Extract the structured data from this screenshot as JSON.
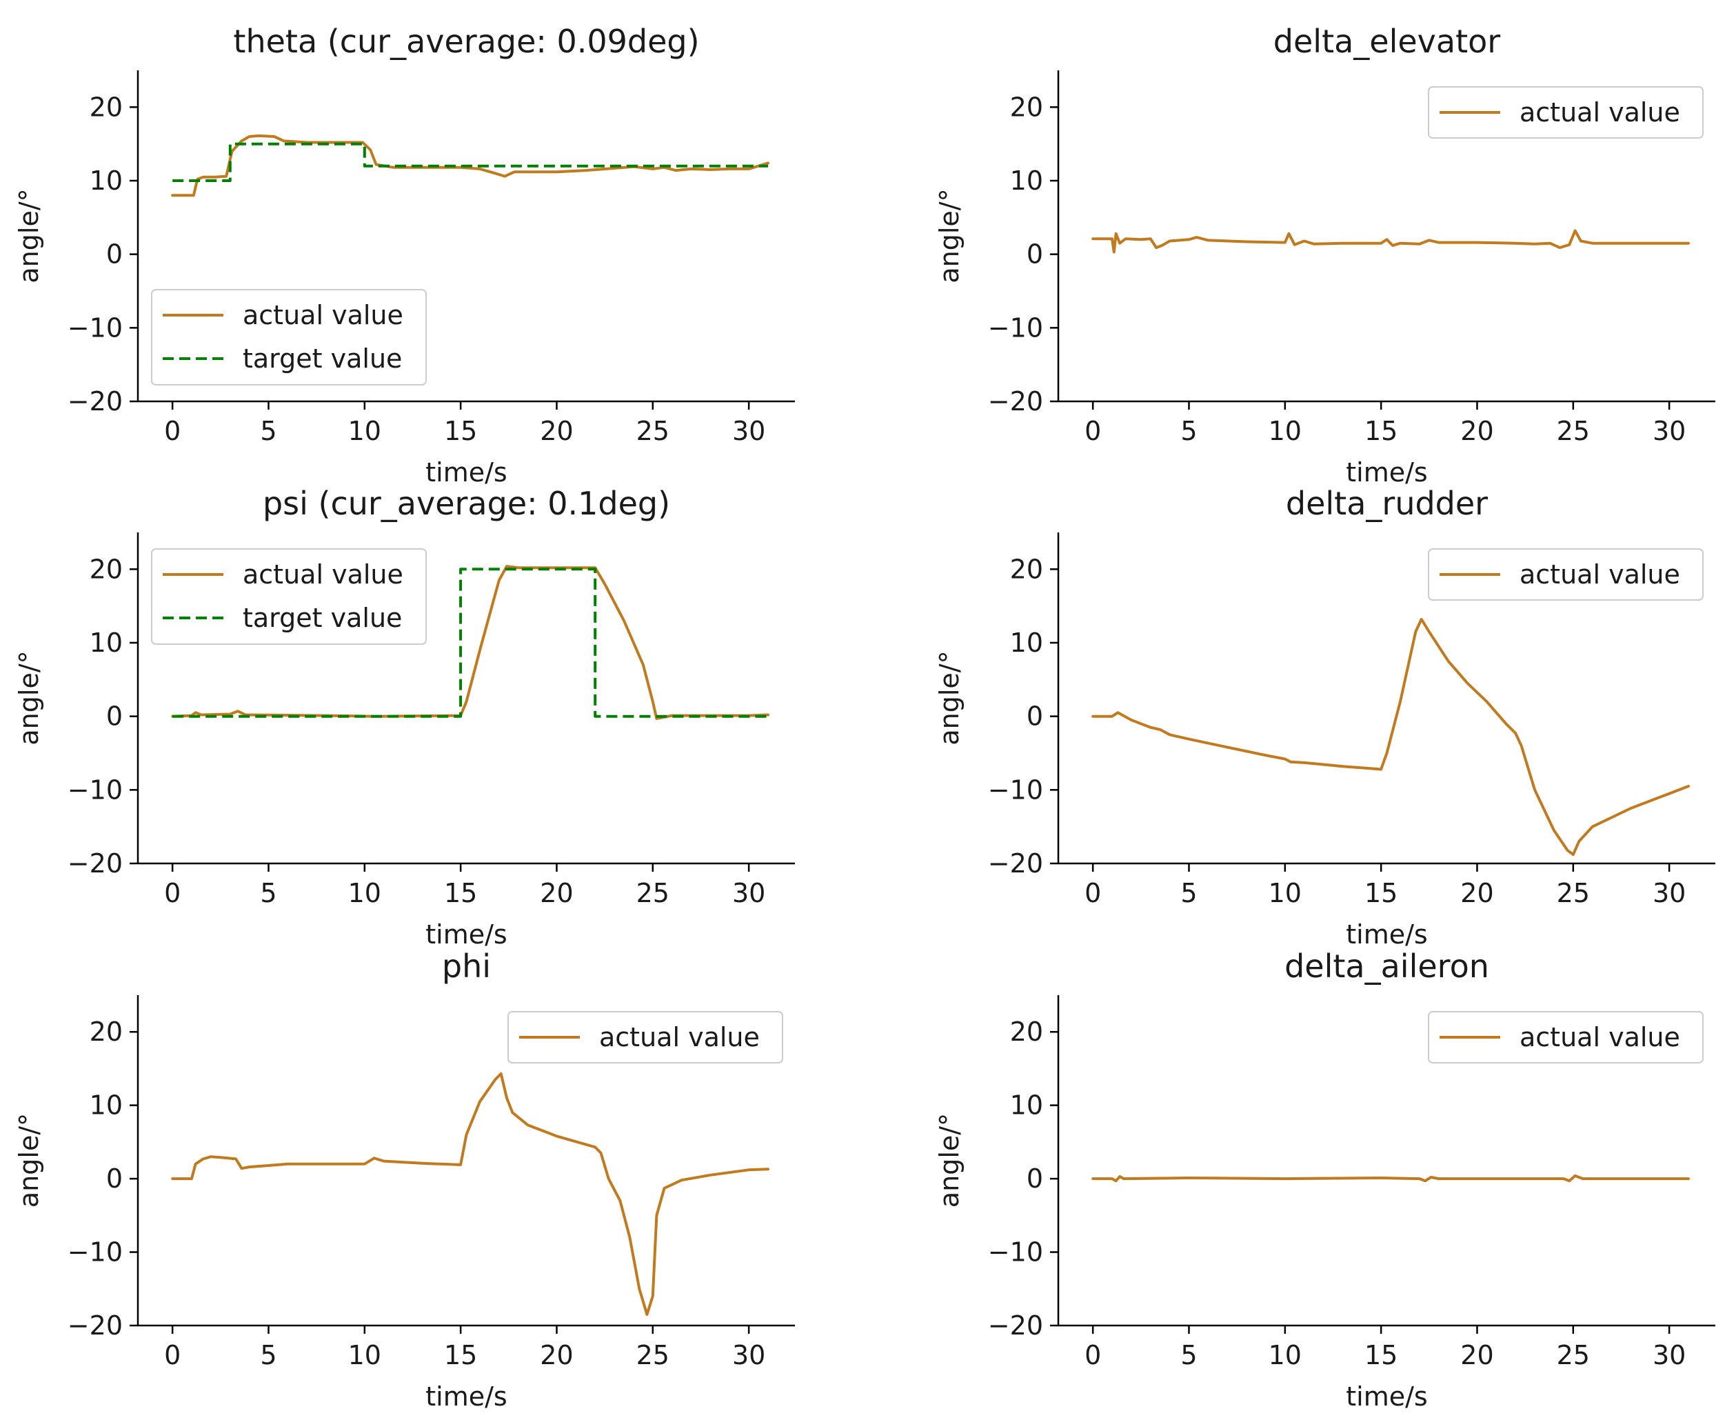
{
  "colors": {
    "actual": "#c27a1e",
    "target": "#008000",
    "axis": "#000000",
    "legend_border": "#cccccc"
  },
  "chart_data": [
    {
      "type": "line",
      "title": "theta (cur_average: 0.09deg)",
      "xlabel": "time/s",
      "ylabel": "angle/°",
      "xlim": [
        -1.8,
        32.4
      ],
      "ylim": [
        -20,
        25
      ],
      "xticks": [
        0,
        5,
        10,
        15,
        20,
        25,
        30
      ],
      "yticks": [
        -20,
        -10,
        0,
        10,
        20
      ],
      "tick_labels_x": [
        "0",
        "5",
        "10",
        "15",
        "20",
        "25",
        "30"
      ],
      "tick_labels_y": [
        "−20",
        "−10",
        "0",
        "10",
        "20"
      ],
      "legend": {
        "placement": "lower-left"
      },
      "series": [
        {
          "name": "actual value",
          "style": "solid",
          "color": "#c27a1e",
          "points": [
            [
              0,
              8
            ],
            [
              1.1,
              8
            ],
            [
              1.3,
              10.2
            ],
            [
              1.6,
              10.5
            ],
            [
              2.2,
              10.5
            ],
            [
              2.8,
              10.6
            ],
            [
              3.1,
              14
            ],
            [
              3.6,
              15.4
            ],
            [
              4,
              16
            ],
            [
              4.5,
              16.1
            ],
            [
              5.3,
              16
            ],
            [
              5.8,
              15.4
            ],
            [
              7,
              15.2
            ],
            [
              8.5,
              15.2
            ],
            [
              9.9,
              15.2
            ],
            [
              10.3,
              14.2
            ],
            [
              10.6,
              12.2
            ],
            [
              11.5,
              11.8
            ],
            [
              13,
              11.8
            ],
            [
              15,
              11.8
            ],
            [
              16,
              11.6
            ],
            [
              16.8,
              11
            ],
            [
              17.3,
              10.6
            ],
            [
              17.8,
              11.2
            ],
            [
              18.8,
              11.2
            ],
            [
              20,
              11.2
            ],
            [
              21.5,
              11.4
            ],
            [
              23,
              11.7
            ],
            [
              24,
              11.9
            ],
            [
              25,
              11.6
            ],
            [
              25.6,
              11.8
            ],
            [
              26.2,
              11.4
            ],
            [
              27,
              11.6
            ],
            [
              28,
              11.5
            ],
            [
              29,
              11.6
            ],
            [
              30,
              11.6
            ],
            [
              31,
              12.4
            ]
          ]
        },
        {
          "name": "target value",
          "style": "dashed",
          "color": "#008000",
          "points": [
            [
              0,
              10
            ],
            [
              3,
              10
            ],
            [
              3,
              15
            ],
            [
              10,
              15
            ],
            [
              10,
              12
            ],
            [
              31,
              12
            ]
          ]
        }
      ]
    },
    {
      "type": "line",
      "title": "delta_elevator",
      "xlabel": "time/s",
      "ylabel": "angle/°",
      "xlim": [
        -1.8,
        32.4
      ],
      "ylim": [
        -20,
        25
      ],
      "xticks": [
        0,
        5,
        10,
        15,
        20,
        25,
        30
      ],
      "yticks": [
        -20,
        -10,
        0,
        10,
        20
      ],
      "tick_labels_x": [
        "0",
        "5",
        "10",
        "15",
        "20",
        "25",
        "30"
      ],
      "tick_labels_y": [
        "−20",
        "−10",
        "0",
        "10",
        "20"
      ],
      "legend": {
        "placement": "top-right"
      },
      "series": [
        {
          "name": "actual value",
          "style": "solid",
          "color": "#c27a1e",
          "points": [
            [
              0,
              2.1
            ],
            [
              1,
              2.1
            ],
            [
              1.1,
              0.3
            ],
            [
              1.2,
              2.8
            ],
            [
              1.4,
              1.5
            ],
            [
              1.7,
              2.1
            ],
            [
              2.5,
              2
            ],
            [
              3,
              2.1
            ],
            [
              3.3,
              0.9
            ],
            [
              3.6,
              1.2
            ],
            [
              4,
              1.8
            ],
            [
              5,
              2
            ],
            [
              5.4,
              2.3
            ],
            [
              6,
              1.9
            ],
            [
              8,
              1.7
            ],
            [
              10,
              1.6
            ],
            [
              10.2,
              2.8
            ],
            [
              10.5,
              1.3
            ],
            [
              11,
              1.8
            ],
            [
              11.5,
              1.4
            ],
            [
              13,
              1.5
            ],
            [
              15,
              1.5
            ],
            [
              15.3,
              2
            ],
            [
              15.6,
              1.2
            ],
            [
              16,
              1.5
            ],
            [
              17,
              1.4
            ],
            [
              17.5,
              1.9
            ],
            [
              18,
              1.6
            ],
            [
              20,
              1.6
            ],
            [
              22,
              1.5
            ],
            [
              23,
              1.4
            ],
            [
              23.8,
              1.5
            ],
            [
              24.3,
              0.9
            ],
            [
              24.8,
              1.3
            ],
            [
              25.1,
              3.2
            ],
            [
              25.4,
              1.8
            ],
            [
              26,
              1.5
            ],
            [
              28,
              1.5
            ],
            [
              30,
              1.5
            ],
            [
              31,
              1.5
            ]
          ]
        }
      ]
    },
    {
      "type": "line",
      "title": "psi (cur_average: 0.1deg)",
      "xlabel": "time/s",
      "ylabel": "angle/°",
      "xlim": [
        -1.8,
        32.4
      ],
      "ylim": [
        -20,
        25
      ],
      "xticks": [
        0,
        5,
        10,
        15,
        20,
        25,
        30
      ],
      "yticks": [
        -20,
        -10,
        0,
        10,
        20
      ],
      "tick_labels_x": [
        "0",
        "5",
        "10",
        "15",
        "20",
        "25",
        "30"
      ],
      "tick_labels_y": [
        "−20",
        "−10",
        "0",
        "10",
        "20"
      ],
      "legend": {
        "placement": "top-left"
      },
      "series": [
        {
          "name": "actual value",
          "style": "solid",
          "color": "#c27a1e",
          "points": [
            [
              0,
              0
            ],
            [
              1,
              0.1
            ],
            [
              1.2,
              0.5
            ],
            [
              1.5,
              0.2
            ],
            [
              3,
              0.3
            ],
            [
              3.4,
              0.7
            ],
            [
              3.8,
              0.2
            ],
            [
              8,
              0.1
            ],
            [
              10.5,
              0
            ],
            [
              15,
              0.1
            ],
            [
              15.3,
              2
            ],
            [
              16,
              9
            ],
            [
              17,
              18.5
            ],
            [
              17.4,
              20.4
            ],
            [
              18,
              20.2
            ],
            [
              20,
              20.2
            ],
            [
              22,
              20.2
            ],
            [
              22.5,
              18
            ],
            [
              23.5,
              13
            ],
            [
              24.5,
              7
            ],
            [
              25,
              2
            ],
            [
              25.2,
              -0.3
            ],
            [
              26,
              0.1
            ],
            [
              28,
              0.1
            ],
            [
              30,
              0.1
            ],
            [
              31,
              0.2
            ]
          ]
        },
        {
          "name": "target value",
          "style": "dashed",
          "color": "#008000",
          "points": [
            [
              0,
              0
            ],
            [
              15,
              0
            ],
            [
              15,
              20
            ],
            [
              22,
              20
            ],
            [
              22,
              0
            ],
            [
              31,
              0
            ]
          ]
        }
      ]
    },
    {
      "type": "line",
      "title": "delta_rudder",
      "xlabel": "time/s",
      "ylabel": "angle/°",
      "xlim": [
        -1.8,
        32.4
      ],
      "ylim": [
        -20,
        25
      ],
      "xticks": [
        0,
        5,
        10,
        15,
        20,
        25,
        30
      ],
      "yticks": [
        -20,
        -10,
        0,
        10,
        20
      ],
      "tick_labels_x": [
        "0",
        "5",
        "10",
        "15",
        "20",
        "25",
        "30"
      ],
      "tick_labels_y": [
        "−20",
        "−10",
        "0",
        "10",
        "20"
      ],
      "legend": {
        "placement": "top-right"
      },
      "series": [
        {
          "name": "actual value",
          "style": "solid",
          "color": "#c27a1e",
          "points": [
            [
              0,
              0
            ],
            [
              1,
              0
            ],
            [
              1.3,
              0.5
            ],
            [
              2,
              -0.5
            ],
            [
              3,
              -1.5
            ],
            [
              3.5,
              -1.8
            ],
            [
              4,
              -2.5
            ],
            [
              5,
              -3.1
            ],
            [
              7,
              -4.2
            ],
            [
              9,
              -5.3
            ],
            [
              10,
              -5.8
            ],
            [
              10.3,
              -6.2
            ],
            [
              11,
              -6.3
            ],
            [
              13,
              -6.8
            ],
            [
              14.5,
              -7.1
            ],
            [
              15,
              -7.2
            ],
            [
              15.3,
              -5
            ],
            [
              16,
              2
            ],
            [
              16.8,
              11.5
            ],
            [
              17.1,
              13.2
            ],
            [
              17.5,
              11.5
            ],
            [
              18.5,
              7.5
            ],
            [
              19.5,
              4.5
            ],
            [
              20.5,
              2
            ],
            [
              21.5,
              -1
            ],
            [
              22,
              -2.3
            ],
            [
              22.3,
              -4
            ],
            [
              23,
              -10
            ],
            [
              24,
              -15.5
            ],
            [
              24.7,
              -18.2
            ],
            [
              25,
              -18.8
            ],
            [
              25.3,
              -17
            ],
            [
              26,
              -15
            ],
            [
              28,
              -12.5
            ],
            [
              30,
              -10.5
            ],
            [
              31,
              -9.5
            ]
          ]
        }
      ]
    },
    {
      "type": "line",
      "title": "phi",
      "xlabel": "time/s",
      "ylabel": "angle/°",
      "xlim": [
        -1.8,
        32.4
      ],
      "ylim": [
        -20,
        25
      ],
      "xticks": [
        0,
        5,
        10,
        15,
        20,
        25,
        30
      ],
      "yticks": [
        -20,
        -10,
        0,
        10,
        20
      ],
      "tick_labels_x": [
        "0",
        "5",
        "10",
        "15",
        "20",
        "25",
        "30"
      ],
      "tick_labels_y": [
        "−20",
        "−10",
        "0",
        "10",
        "20"
      ],
      "legend": {
        "placement": "top-right"
      },
      "series": [
        {
          "name": "actual value",
          "style": "solid",
          "color": "#c27a1e",
          "points": [
            [
              0,
              0
            ],
            [
              1,
              0
            ],
            [
              1.2,
              2
            ],
            [
              1.6,
              2.7
            ],
            [
              2,
              3
            ],
            [
              2.5,
              2.9
            ],
            [
              3.3,
              2.7
            ],
            [
              3.6,
              1.4
            ],
            [
              4,
              1.6
            ],
            [
              5,
              1.8
            ],
            [
              6,
              2
            ],
            [
              8,
              2
            ],
            [
              10,
              2
            ],
            [
              10.5,
              2.8
            ],
            [
              11,
              2.4
            ],
            [
              13,
              2.1
            ],
            [
              15,
              1.9
            ],
            [
              15.3,
              6
            ],
            [
              16,
              10.5
            ],
            [
              16.8,
              13.5
            ],
            [
              17.1,
              14.3
            ],
            [
              17.4,
              11
            ],
            [
              17.7,
              9
            ],
            [
              18.5,
              7.3
            ],
            [
              20,
              5.8
            ],
            [
              22,
              4.3
            ],
            [
              22.3,
              3.5
            ],
            [
              22.7,
              0
            ],
            [
              23.3,
              -3
            ],
            [
              23.8,
              -8
            ],
            [
              24.3,
              -15
            ],
            [
              24.7,
              -18.5
            ],
            [
              25,
              -16
            ],
            [
              25.2,
              -5
            ],
            [
              25.6,
              -1.3
            ],
            [
              26.5,
              -0.2
            ],
            [
              28,
              0.5
            ],
            [
              30,
              1.2
            ],
            [
              31,
              1.3
            ]
          ]
        }
      ]
    },
    {
      "type": "line",
      "title": "delta_aileron",
      "xlabel": "time/s",
      "ylabel": "angle/°",
      "xlim": [
        -1.8,
        32.4
      ],
      "ylim": [
        -20,
        25
      ],
      "xticks": [
        0,
        5,
        10,
        15,
        20,
        25,
        30
      ],
      "yticks": [
        -20,
        -10,
        0,
        10,
        20
      ],
      "tick_labels_x": [
        "0",
        "5",
        "10",
        "15",
        "20",
        "25",
        "30"
      ],
      "tick_labels_y": [
        "−20",
        "−10",
        "0",
        "10",
        "20"
      ],
      "legend": {
        "placement": "top-right"
      },
      "series": [
        {
          "name": "actual value",
          "style": "solid",
          "color": "#c27a1e",
          "points": [
            [
              0,
              0
            ],
            [
              1,
              0
            ],
            [
              1.2,
              -0.3
            ],
            [
              1.4,
              0.3
            ],
            [
              1.6,
              0
            ],
            [
              5,
              0.1
            ],
            [
              10,
              0
            ],
            [
              15,
              0.1
            ],
            [
              17,
              0
            ],
            [
              17.3,
              -0.3
            ],
            [
              17.6,
              0.2
            ],
            [
              18,
              0
            ],
            [
              22,
              0
            ],
            [
              24.5,
              0
            ],
            [
              24.8,
              -0.3
            ],
            [
              25.1,
              0.4
            ],
            [
              25.5,
              0
            ],
            [
              28,
              0
            ],
            [
              31,
              0
            ]
          ]
        }
      ]
    }
  ]
}
